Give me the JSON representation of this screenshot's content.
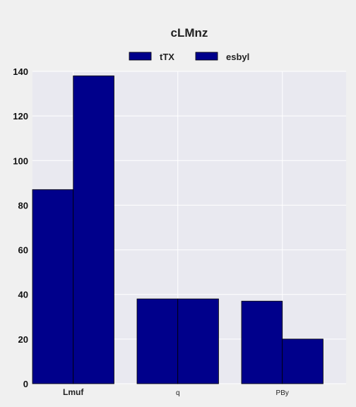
{
  "chart_data": {
    "type": "bar",
    "title": "cLMnz",
    "xlabel": "",
    "ylabel": "",
    "categories": [
      "Lmuf",
      "q",
      "PBy"
    ],
    "series": [
      {
        "name": "tTX",
        "values": [
          87,
          38,
          37
        ]
      },
      {
        "name": "esbyl",
        "values": [
          138,
          38,
          20
        ]
      }
    ],
    "ylim": [
      0,
      140
    ],
    "yticks": [
      0,
      20,
      40,
      60,
      80,
      100,
      120,
      140
    ],
    "grid": true,
    "legend": "top-center",
    "colors": {
      "bar": "#00008b",
      "bar_edge": "#000000",
      "plot_background": "#e9e9f0",
      "figure_background": "#f0f0f0",
      "grid": "#ffffff"
    }
  }
}
